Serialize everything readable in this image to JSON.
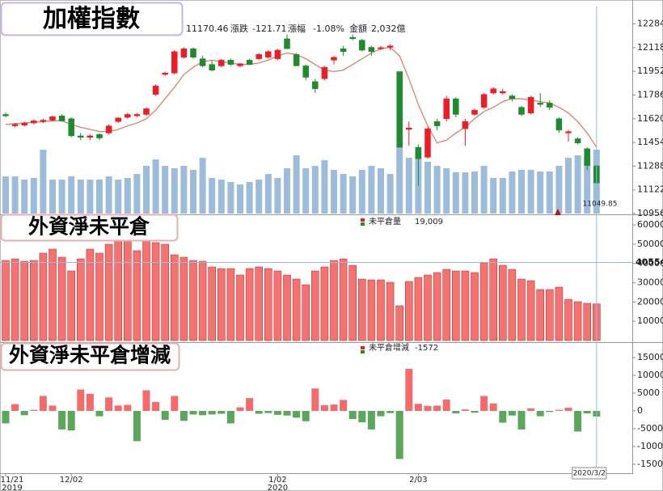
{
  "chart_data": [
    {
      "type": "candlestick",
      "title": "加權指數",
      "open": [
        11650,
        11570,
        11575,
        11590,
        11600,
        11610,
        11640,
        11620,
        11500,
        11490,
        11510,
        11520,
        11600,
        11630,
        11640,
        11650,
        11790,
        11930,
        11940,
        12050,
        12110,
        12040,
        12000,
        11990,
        12030,
        11990,
        12030,
        12040,
        12050,
        12040,
        12180,
        12070,
        11990,
        11880,
        11900,
        12030,
        12110,
        12190,
        12170,
        12120,
        12110,
        12120,
        11950,
        11545,
        11420,
        11350,
        11600,
        11620,
        11760,
        11550,
        11650,
        11700,
        11800,
        11800,
        11780,
        11700,
        11660,
        11730,
        11730,
        11620,
        11520,
        11480,
        11410,
        11290
      ],
      "high": [
        11665,
        11590,
        11600,
        11615,
        11620,
        11640,
        11650,
        11630,
        11520,
        11510,
        11520,
        11580,
        11630,
        11660,
        11660,
        11700,
        11860,
        11950,
        12100,
        12120,
        12120,
        12060,
        12030,
        12040,
        12040,
        12010,
        12040,
        12080,
        12100,
        12110,
        12210,
        12080,
        12000,
        11900,
        11990,
        12060,
        12130,
        12210,
        12180,
        12130,
        12130,
        12140,
        11950,
        11600,
        11440,
        11560,
        11620,
        11780,
        11770,
        11620,
        11690,
        11800,
        11840,
        11830,
        11790,
        11710,
        11780,
        11800,
        11750,
        11630,
        11540,
        11490,
        11420,
        11300
      ],
      "low": [
        11630,
        11560,
        11565,
        11580,
        11590,
        11600,
        11600,
        11490,
        11470,
        11470,
        11470,
        11510,
        11590,
        11620,
        11630,
        11640,
        11780,
        11920,
        11930,
        12040,
        12040,
        11980,
        11950,
        11980,
        11990,
        11980,
        11995,
        12030,
        12040,
        12030,
        12110,
        11990,
        11890,
        11800,
        11890,
        12000,
        12060,
        12170,
        12090,
        12060,
        12100,
        12100,
        11420,
        11430,
        11150,
        11340,
        11540,
        11600,
        11630,
        11430,
        11640,
        11690,
        11790,
        11790,
        11740,
        11640,
        11650,
        11700,
        11680,
        11520,
        11460,
        11440,
        11260,
        11165
      ],
      "close": [
        11640,
        11580,
        11590,
        11605,
        11610,
        11635,
        11605,
        11500,
        11490,
        11500,
        11485,
        11570,
        11625,
        11650,
        11650,
        11690,
        11850,
        11940,
        12090,
        12110,
        12050,
        11990,
        11960,
        12030,
        12000,
        12005,
        12000,
        12070,
        12090,
        12100,
        12110,
        11990,
        11910,
        11830,
        11980,
        12050,
        12090,
        12180,
        12100,
        12090,
        12118,
        12130,
        11420,
        11555,
        11340,
        11550,
        11570,
        11760,
        11650,
        11600,
        11680,
        11790,
        11830,
        11810,
        11760,
        11650,
        11770,
        11720,
        11700,
        11540,
        11530,
        11450,
        11292,
        11170.46
      ],
      "ma": [
        11580,
        11585,
        11590,
        11595,
        11600,
        11605,
        11605,
        11580,
        11560,
        11545,
        11530,
        11530,
        11545,
        11570,
        11590,
        11620,
        11680,
        11760,
        11840,
        11930,
        11980,
        12020,
        12030,
        12020,
        12010,
        12000,
        12000,
        12010,
        12030,
        12060,
        12080,
        12070,
        12040,
        12000,
        11960,
        11950,
        11960,
        12000,
        12040,
        12080,
        12110,
        12120,
        12060,
        11900,
        11720,
        11570,
        11450,
        11470,
        11520,
        11560,
        11620,
        11670,
        11700,
        11740,
        11760,
        11760,
        11750,
        11740,
        11730,
        11700,
        11660,
        11600,
        11520,
        11420
      ],
      "volume": [
        1182,
        1182,
        1079,
        1131,
        2030,
        1079,
        1079,
        1182,
        1079,
        1079,
        1079,
        1182,
        1079,
        1131,
        1259,
        1516,
        1722,
        1516,
        1439,
        1516,
        1388,
        1773,
        1131,
        1079,
        1002,
        925,
        1002,
        1079,
        1259,
        1131,
        1439,
        1850,
        1439,
        1516,
        1696,
        1388,
        1259,
        1182,
        1388,
        1516,
        1439,
        1259,
        2159,
        1773,
        1902,
        1645,
        1516,
        1439,
        1311,
        1311,
        1336,
        1516,
        1131,
        1131,
        1336,
        1388,
        1388,
        1336,
        1336,
        1516,
        1773,
        1850,
        1850,
        2032
      ],
      "quote": {
        "change_label": "漲跌",
        "change": -121.71,
        "pct_label": "漲幅",
        "pct": {
          "value": -1.08,
          "label": "-1.08%"
        },
        "amount_label": "金額",
        "amount": {
          "value": 2032,
          "label": "2,032億"
        }
      },
      "cursor_price": 11049.85,
      "up_color": "#ee1c25",
      "down_color": "#1f8a2e",
      "ma_color": "#d9826f",
      "volume_color": "#9dbcdc",
      "text_down_color": "#2e9a3e",
      "ylim": [
        10956,
        12406
      ],
      "yticks": [
        10956,
        11122,
        11288,
        11454,
        11620,
        11786,
        11952,
        12118,
        12284
      ]
    },
    {
      "type": "bar",
      "title": "外資淨未平倉",
      "series": [
        {
          "name": "未平倉量",
          "legend_value": "19,009",
          "color": "#f47272",
          "border_color": "#c0392b",
          "values": [
            41580,
            42420,
            41160,
            41580,
            45360,
            47460,
            43260,
            36120,
            42420,
            47460,
            45360,
            49980,
            51660,
            51660,
            46620,
            51660,
            50820,
            49980,
            44520,
            43260,
            41580,
            41160,
            38220,
            37380,
            37380,
            34020,
            37380,
            38220,
            37380,
            36120,
            34020,
            31920,
            28980,
            36120,
            38220,
            41580,
            42420,
            39060,
            31920,
            31500,
            31500,
            30240,
            18060,
            30660,
            32760,
            34020,
            35280,
            36960,
            36120,
            36120,
            35280,
            40320,
            42420,
            39060,
            36960,
            31920,
            31080,
            26460,
            26460,
            27720,
            21420,
            20160,
            19320,
            19009
          ]
        }
      ],
      "cursor_value": 40554,
      "cursor_color": "#e02020",
      "ylim": [
        0,
        64260
      ],
      "yticks": [
        10000,
        20000,
        30000,
        40000,
        50000,
        60000
      ]
    },
    {
      "type": "bar",
      "title": "外資淨未平倉增減",
      "categories": [
        "11/21",
        null,
        null,
        null,
        null,
        null,
        null,
        "12/02",
        null,
        null,
        null,
        null,
        null,
        null,
        null,
        null,
        null,
        null,
        null,
        null,
        null,
        null,
        null,
        null,
        null,
        null,
        null,
        null,
        null,
        "1/02",
        null,
        null,
        null,
        null,
        null,
        null,
        null,
        null,
        null,
        null,
        null,
        null,
        null,
        null,
        "2/03",
        null,
        null,
        null,
        null,
        null,
        null,
        null,
        null,
        null,
        null,
        null,
        null,
        null,
        null,
        null,
        null,
        null,
        null,
        null
      ],
      "category_years": [
        "2019",
        null,
        null,
        null,
        null,
        null,
        null,
        null,
        null,
        null,
        null,
        null,
        null,
        null,
        null,
        null,
        null,
        null,
        null,
        null,
        null,
        null,
        null,
        null,
        null,
        null,
        null,
        null,
        null,
        "2020",
        null,
        null,
        null,
        null,
        null,
        null,
        null,
        null,
        null,
        null,
        null,
        null,
        null,
        null,
        null,
        null,
        null,
        null,
        null,
        null,
        null,
        null,
        null,
        null,
        null,
        null,
        null,
        null,
        null,
        null,
        null,
        null,
        null,
        null
      ],
      "cursor_date": "2020/3/2",
      "series": [
        {
          "name": "未平倉增減",
          "legend_value": "-1572",
          "color": "#f46b6b",
          "negative_color": "#5aa65a",
          "values": [
            -3500,
            1900,
            -1200,
            300,
            4200,
            1500,
            -5200,
            -5500,
            6000,
            4800,
            -1500,
            3800,
            1500,
            1700,
            -8500,
            5800,
            2500,
            -2500,
            4200,
            -2800,
            -1000,
            -1200,
            -1000,
            -800,
            -3500,
            1000,
            3600,
            -800,
            -600,
            -1100,
            -1300,
            -1900,
            -2900,
            6300,
            1600,
            1800,
            3100,
            -2300,
            -3200,
            -5200,
            -1500,
            -600,
            -13500,
            11800,
            2000,
            1400,
            1500,
            3200,
            -700,
            400,
            -500,
            4200,
            2100,
            -3300,
            -1300,
            -5200,
            700,
            -1500,
            -300,
            300,
            900,
            -5800,
            -700,
            -1572
          ]
        }
      ],
      "ylim": [
        -17500,
        19090
      ],
      "yticks": [
        -15000,
        -10000,
        -5000,
        0,
        5000,
        10000,
        15000
      ]
    }
  ]
}
